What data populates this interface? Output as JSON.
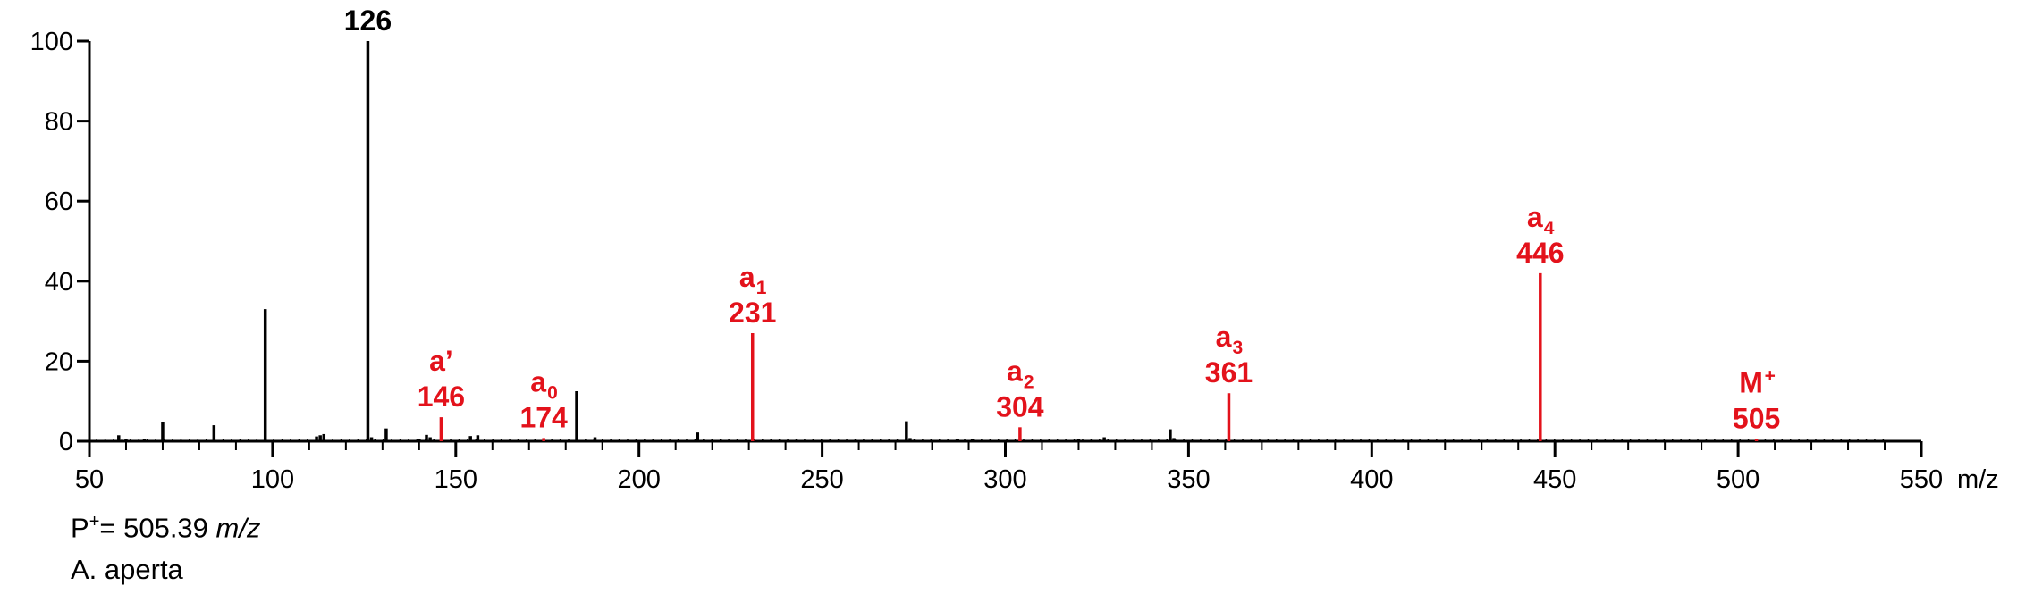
{
  "colors": {
    "axis": "#000000",
    "peak_black": "#000000",
    "peak_red": "#e3121b"
  },
  "footer": {
    "precursor_prefix": "P",
    "precursor_sup": "+",
    "precursor_value": "= 505.39",
    "precursor_unit": "m/z",
    "species": "A. aperta"
  },
  "chart_data": {
    "type": "bar",
    "x_unit_label": "m/z",
    "xlim": [
      50,
      550
    ],
    "ylim": [
      0,
      100
    ],
    "x_ticks": [
      50,
      100,
      150,
      200,
      250,
      300,
      350,
      400,
      450,
      500,
      550
    ],
    "x_tick_labels": [
      "50",
      "100",
      "150",
      "200",
      "250",
      "300",
      "350",
      "400",
      "450",
      "500",
      "550"
    ],
    "x_minor_step": 10,
    "y_ticks": [
      0,
      20,
      40,
      60,
      80,
      100
    ],
    "y_tick_labels": [
      "0",
      "20",
      "40",
      "60",
      "80",
      "100"
    ],
    "series": [
      {
        "color": "#000000",
        "points": [
          {
            "x": 58,
            "y": 1.5
          },
          {
            "x": 60,
            "y": 0.5
          },
          {
            "x": 65,
            "y": 0.5
          },
          {
            "x": 70,
            "y": 4.7
          },
          {
            "x": 84,
            "y": 4.0
          },
          {
            "x": 98,
            "y": 33
          },
          {
            "x": 112,
            "y": 1.2
          },
          {
            "x": 113,
            "y": 1.5
          },
          {
            "x": 114,
            "y": 1.8
          },
          {
            "x": 126,
            "y": 100
          },
          {
            "x": 127,
            "y": 1.0
          },
          {
            "x": 131,
            "y": 3.2
          },
          {
            "x": 140,
            "y": 0.6
          },
          {
            "x": 142,
            "y": 1.6
          },
          {
            "x": 143,
            "y": 1.0
          },
          {
            "x": 154,
            "y": 1.3
          },
          {
            "x": 156,
            "y": 1.5
          },
          {
            "x": 183,
            "y": 12.5
          },
          {
            "x": 188,
            "y": 1.0
          },
          {
            "x": 216,
            "y": 2.2
          },
          {
            "x": 273,
            "y": 5.0
          },
          {
            "x": 274,
            "y": 0.8
          },
          {
            "x": 287,
            "y": 0.6
          },
          {
            "x": 291,
            "y": 0.6
          },
          {
            "x": 320,
            "y": 0.6
          },
          {
            "x": 327,
            "y": 1.0
          },
          {
            "x": 345,
            "y": 3.0
          },
          {
            "x": 346,
            "y": 0.8
          }
        ]
      },
      {
        "color": "#e3121b",
        "points": [
          {
            "x": 146,
            "y": 6
          },
          {
            "x": 174,
            "y": 0.8
          },
          {
            "x": 231,
            "y": 27
          },
          {
            "x": 304,
            "y": 3.5
          },
          {
            "x": 361,
            "y": 12
          },
          {
            "x": 446,
            "y": 42
          },
          {
            "x": 505,
            "y": 0.6
          }
        ]
      }
    ],
    "annotations": [
      {
        "x": 126,
        "y": 100,
        "color": "#000000",
        "letter": "",
        "sub": "",
        "value": "126"
      },
      {
        "x": 146,
        "y": 6,
        "color": "#e3121b",
        "letter": "a’",
        "sub": "",
        "value": "146"
      },
      {
        "x": 174,
        "y": 0.8,
        "color": "#e3121b",
        "letter": "a",
        "sub": "0",
        "value": "174"
      },
      {
        "x": 231,
        "y": 27,
        "color": "#e3121b",
        "letter": "a",
        "sub": "1",
        "value": "231"
      },
      {
        "x": 304,
        "y": 3.5,
        "color": "#e3121b",
        "letter": "a",
        "sub": "2",
        "value": "304"
      },
      {
        "x": 361,
        "y": 12,
        "color": "#e3121b",
        "letter": "a",
        "sub": "3",
        "value": "361"
      },
      {
        "x": 446,
        "y": 42,
        "color": "#e3121b",
        "letter": "a",
        "sub": "4",
        "value": "446"
      },
      {
        "x": 505,
        "y": 0.6,
        "color": "#e3121b",
        "letter": "M",
        "sup": "+",
        "value": "505"
      }
    ]
  }
}
